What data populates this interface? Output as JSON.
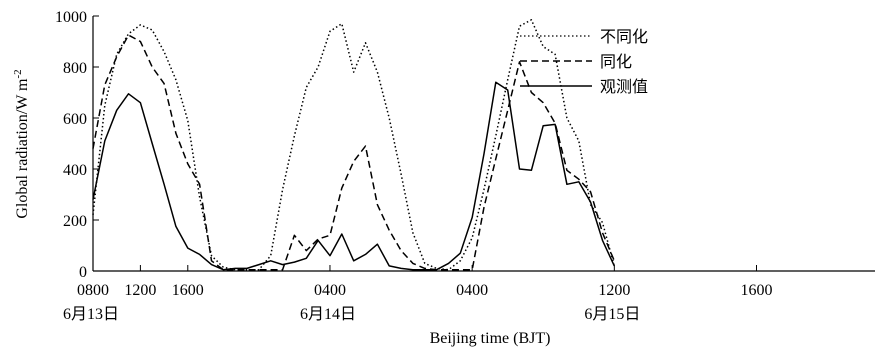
{
  "chart_data": {
    "type": "line",
    "xlabel": "Beijing time (BJT)",
    "ylabel": "Global radiation/W m",
    "ylabel_sup": "-2",
    "ylim": [
      0,
      1000
    ],
    "yticks": [
      0,
      200,
      400,
      600,
      800,
      1000
    ],
    "xlim": [
      0,
      66
    ],
    "xtick_hours": [
      0,
      4,
      8,
      20,
      32,
      44,
      56
    ],
    "xtick_labels": [
      "0800",
      "1200",
      "1600",
      "0400",
      "0400",
      "1200",
      "1600"
    ],
    "date_labels": [
      {
        "hour": 0,
        "text": "6月13日"
      },
      {
        "hour": 20,
        "text": "6月14日"
      },
      {
        "hour": 44,
        "text": "6月15日"
      }
    ],
    "legend_position": "top-right",
    "series": [
      {
        "name": "不同化",
        "style": "dotted",
        "color": "#000000",
        "points": [
          [
            0,
            220
          ],
          [
            1,
            650
          ],
          [
            2,
            850
          ],
          [
            3,
            930
          ],
          [
            4,
            965
          ],
          [
            5,
            945
          ],
          [
            6,
            860
          ],
          [
            7,
            750
          ],
          [
            8,
            590
          ],
          [
            9,
            290
          ],
          [
            10,
            60
          ],
          [
            11,
            15
          ],
          [
            12,
            5
          ],
          [
            13,
            5
          ],
          [
            14,
            5
          ],
          [
            15,
            60
          ],
          [
            16,
            320
          ],
          [
            17,
            530
          ],
          [
            18,
            720
          ],
          [
            19,
            800
          ],
          [
            20,
            940
          ],
          [
            21,
            970
          ],
          [
            22,
            780
          ],
          [
            23,
            895
          ],
          [
            24,
            780
          ],
          [
            25,
            600
          ],
          [
            26,
            380
          ],
          [
            27,
            150
          ],
          [
            28,
            30
          ],
          [
            29,
            10
          ],
          [
            30,
            5
          ],
          [
            31,
            40
          ],
          [
            32,
            130
          ],
          [
            33,
            320
          ],
          [
            34,
            530
          ],
          [
            35,
            750
          ],
          [
            36,
            960
          ],
          [
            37,
            985
          ],
          [
            38,
            880
          ],
          [
            39,
            850
          ],
          [
            40,
            600
          ],
          [
            41,
            510
          ],
          [
            42,
            260
          ],
          [
            43,
            190
          ],
          [
            44,
            20
          ]
        ]
      },
      {
        "name": "同化",
        "style": "dashed",
        "color": "#000000",
        "points": [
          [
            0,
            480
          ],
          [
            1,
            730
          ],
          [
            2,
            840
          ],
          [
            3,
            925
          ],
          [
            4,
            900
          ],
          [
            5,
            800
          ],
          [
            6,
            735
          ],
          [
            7,
            540
          ],
          [
            8,
            420
          ],
          [
            9,
            340
          ],
          [
            10,
            40
          ],
          [
            11,
            5
          ],
          [
            12,
            5
          ],
          [
            13,
            5
          ],
          [
            14,
            5
          ],
          [
            15,
            5
          ],
          [
            16,
            5
          ],
          [
            17,
            140
          ],
          [
            18,
            80
          ],
          [
            19,
            125
          ],
          [
            20,
            140
          ],
          [
            21,
            325
          ],
          [
            22,
            430
          ],
          [
            23,
            490
          ],
          [
            24,
            260
          ],
          [
            25,
            160
          ],
          [
            26,
            80
          ],
          [
            27,
            30
          ],
          [
            28,
            10
          ],
          [
            29,
            5
          ],
          [
            30,
            5
          ],
          [
            31,
            5
          ],
          [
            32,
            5
          ],
          [
            33,
            250
          ],
          [
            34,
            440
          ],
          [
            35,
            630
          ],
          [
            36,
            820
          ],
          [
            37,
            700
          ],
          [
            38,
            660
          ],
          [
            39,
            580
          ],
          [
            40,
            395
          ],
          [
            41,
            360
          ],
          [
            42,
            310
          ],
          [
            43,
            150
          ],
          [
            44,
            40
          ]
        ]
      },
      {
        "name": "观测值",
        "style": "solid",
        "color": "#000000",
        "points": [
          [
            0,
            280
          ],
          [
            1,
            510
          ],
          [
            2,
            630
          ],
          [
            3,
            695
          ],
          [
            4,
            660
          ],
          [
            5,
            500
          ],
          [
            6,
            340
          ],
          [
            7,
            175
          ],
          [
            8,
            90
          ],
          [
            9,
            65
          ],
          [
            10,
            25
          ],
          [
            11,
            5
          ],
          [
            12,
            10
          ],
          [
            13,
            10
          ],
          [
            14,
            25
          ],
          [
            15,
            40
          ],
          [
            16,
            25
          ],
          [
            17,
            35
          ],
          [
            18,
            50
          ],
          [
            19,
            120
          ],
          [
            20,
            60
          ],
          [
            21,
            145
          ],
          [
            22,
            40
          ],
          [
            23,
            65
          ],
          [
            24,
            105
          ],
          [
            25,
            20
          ],
          [
            26,
            10
          ],
          [
            27,
            5
          ],
          [
            28,
            5
          ],
          [
            29,
            5
          ],
          [
            30,
            30
          ],
          [
            31,
            70
          ],
          [
            32,
            210
          ],
          [
            33,
            460
          ],
          [
            34,
            740
          ],
          [
            35,
            710
          ],
          [
            36,
            400
          ],
          [
            37,
            395
          ],
          [
            38,
            570
          ],
          [
            39,
            575
          ],
          [
            40,
            340
          ],
          [
            41,
            350
          ],
          [
            42,
            270
          ],
          [
            43,
            120
          ],
          [
            44,
            20
          ]
        ]
      }
    ]
  }
}
